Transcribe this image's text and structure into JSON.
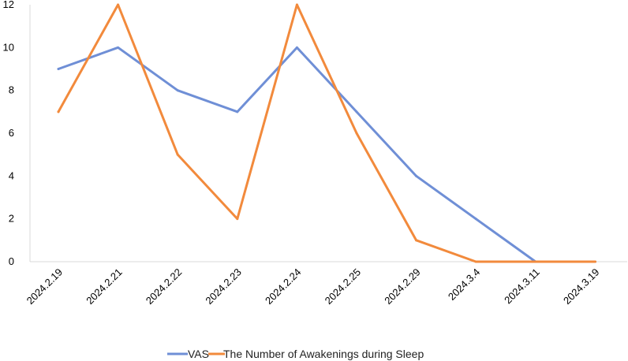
{
  "chart_data": {
    "type": "line",
    "title": "",
    "xlabel": "",
    "ylabel": "",
    "categories": [
      "2024.2.19",
      "2024.2.21",
      "2024.2.22",
      "2024.2.23",
      "2024.2.24",
      "2024.2.25",
      "2024.2.29",
      "2024.3.4",
      "2024.3.11",
      "2024.3.19"
    ],
    "ylim": [
      0,
      12
    ],
    "yticks": [
      0,
      2,
      4,
      6,
      8,
      10,
      12
    ],
    "grid": false,
    "legend_position": "bottom",
    "series": [
      {
        "name": "VAS",
        "color": "#6f8fd6",
        "values": [
          9,
          10,
          8,
          7,
          10,
          7,
          4,
          2,
          0,
          0
        ]
      },
      {
        "name": "The Number of Awakenings during Sleep",
        "color": "#f28a3c",
        "values": [
          7,
          12,
          5,
          2,
          12,
          6,
          1,
          0,
          0,
          0
        ]
      }
    ]
  }
}
